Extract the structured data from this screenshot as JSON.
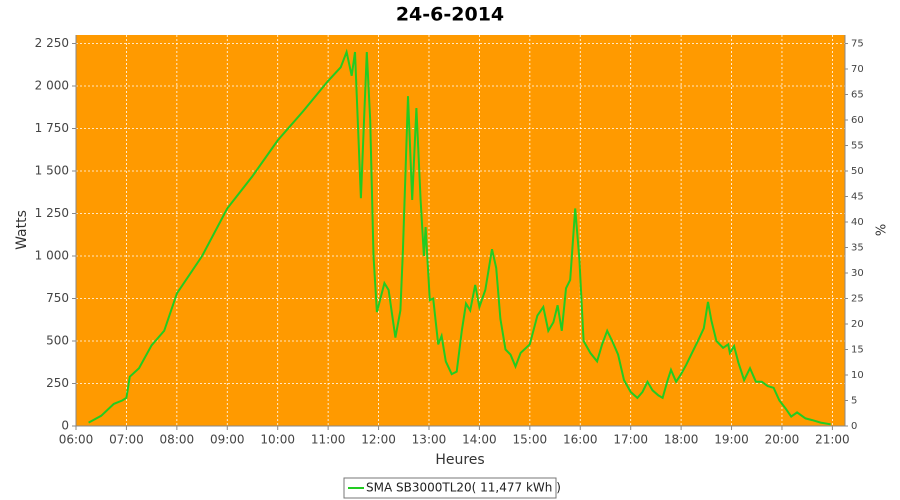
{
  "chart_data": {
    "type": "line",
    "title": "24-6-2014",
    "xlabel": "Heures",
    "ylabel": "Watts",
    "y2label": "%",
    "x": [
      "06:15",
      "06:30",
      "06:45",
      "06:55",
      "07:00",
      "07:04",
      "07:15",
      "07:30",
      "07:45",
      "08:00",
      "08:30",
      "09:00",
      "09:30",
      "10:00",
      "10:30",
      "11:00",
      "11:15",
      "11:22",
      "11:28",
      "11:32",
      "11:39",
      "11:46",
      "11:50",
      "11:54",
      "11:58",
      "12:07",
      "12:12",
      "12:20",
      "12:26",
      "12:29",
      "12:35",
      "12:40",
      "12:45",
      "12:50",
      "12:54",
      "12:56",
      "13:01",
      "13:05",
      "13:11",
      "13:15",
      "13:20",
      "13:27",
      "13:33",
      "13:39",
      "13:44",
      "13:49",
      "13:55",
      "14:00",
      "14:07",
      "14:15",
      "14:20",
      "14:25",
      "14:31",
      "14:37",
      "14:43",
      "14:49",
      "15:00",
      "15:09",
      "15:16",
      "15:22",
      "15:28",
      "15:33",
      "15:38",
      "15:43",
      "15:48",
      "15:54",
      "15:59",
      "16:04",
      "16:12",
      "16:20",
      "16:26",
      "16:32",
      "16:38",
      "16:45",
      "16:52",
      "17:00",
      "17:08",
      "17:14",
      "17:20",
      "17:26",
      "17:33",
      "17:38",
      "17:44",
      "17:48",
      "17:54",
      "18:00",
      "18:06",
      "18:12",
      "18:20",
      "18:27",
      "18:32",
      "18:36",
      "18:42",
      "18:50",
      "18:56",
      "18:58",
      "19:03",
      "19:08",
      "19:15",
      "19:22",
      "19:29",
      "19:36",
      "19:43",
      "19:50",
      "19:57",
      "20:04",
      "20:11",
      "20:18",
      "20:28",
      "20:36",
      "20:46",
      "20:58"
    ],
    "series": [
      {
        "name": "SMA SB3000TL20( 11,477 kWh )",
        "color": "#22cc22",
        "values": [
          20,
          60,
          130,
          150,
          165,
          290,
          340,
          475,
          560,
          780,
          1000,
          1280,
          1470,
          1680,
          1850,
          2030,
          2110,
          2200,
          2060,
          2200,
          1340,
          2200,
          1800,
          1000,
          670,
          840,
          800,
          520,
          680,
          1030,
          1940,
          1330,
          1870,
          1330,
          1000,
          1170,
          740,
          750,
          480,
          530,
          380,
          305,
          320,
          560,
          720,
          680,
          830,
          700,
          800,
          1040,
          930,
          630,
          450,
          420,
          350,
          430,
          480,
          650,
          700,
          560,
          610,
          710,
          560,
          810,
          860,
          1280,
          980,
          500,
          430,
          380,
          480,
          560,
          500,
          420,
          270,
          200,
          165,
          200,
          260,
          210,
          180,
          165,
          270,
          330,
          260,
          305,
          360,
          420,
          500,
          575,
          730,
          620,
          500,
          460,
          480,
          430,
          470,
          375,
          270,
          340,
          260,
          260,
          235,
          225,
          150,
          105,
          55,
          80,
          45,
          35,
          20,
          10
        ]
      }
    ],
    "xlim": [
      "06:00",
      "21:15"
    ],
    "xticks": [
      "06:00",
      "07:00",
      "08:00",
      "09:00",
      "10:00",
      "11:00",
      "12:00",
      "13:00",
      "14:00",
      "15:00",
      "16:00",
      "17:00",
      "18:00",
      "19:00",
      "20:00",
      "21:00"
    ],
    "ylim": [
      0,
      2300
    ],
    "yticks": [
      0,
      250,
      500,
      750,
      {
        "value": 1000,
        "label": "1 000"
      },
      {
        "value": 1250,
        "label": "1 250"
      },
      {
        "value": 1500,
        "label": "1 500"
      },
      {
        "value": 1750,
        "label": "1 750"
      },
      {
        "value": 2000,
        "label": "2 000"
      },
      {
        "value": 2250,
        "label": "2 250"
      }
    ],
    "y2lim": [
      0,
      76.67
    ],
    "y2ticks": [
      0,
      5,
      10,
      15,
      20,
      25,
      30,
      35,
      40,
      45,
      50,
      55,
      60,
      65,
      70,
      75
    ],
    "grid": true,
    "plot_background": "#ff9a00",
    "legend": "bottom"
  }
}
